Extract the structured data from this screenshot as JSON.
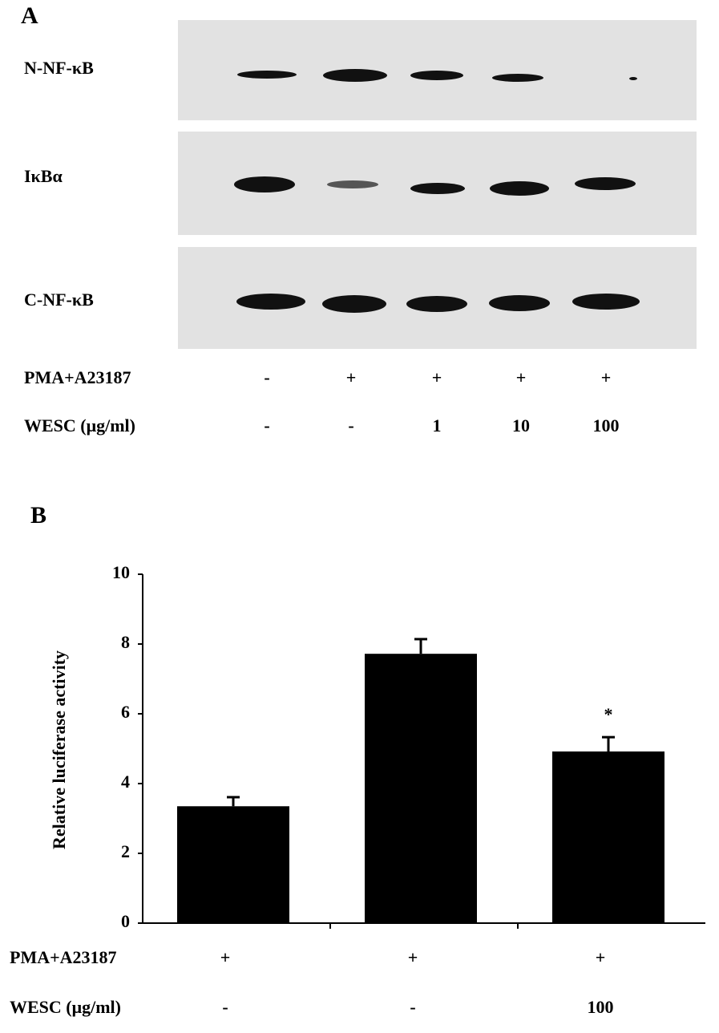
{
  "panel_a": {
    "label": "A",
    "blots": [
      "N-NF-κB",
      "IκBα",
      "C-NF-κB"
    ],
    "conditions": [
      {
        "label": "PMA+A23187",
        "values": [
          "-",
          "+",
          "+",
          "+",
          "+"
        ]
      },
      {
        "label": "WESC (μg/ml)",
        "values": [
          "-",
          "-",
          "1",
          "10",
          "100"
        ]
      }
    ]
  },
  "chart_data": {
    "type": "bar",
    "panel_label": "B",
    "y_label": "Relative luciferase activity",
    "values": [
      3.35,
      7.72,
      4.92
    ],
    "errors": [
      0.26,
      0.42,
      0.41
    ],
    "significance": [
      null,
      null,
      "*"
    ],
    "color": "#000000",
    "ylim": [
      0,
      10
    ],
    "yticks": [
      0,
      2,
      4,
      6,
      8,
      10
    ],
    "conditions": [
      {
        "label": "PMA+A23187",
        "values": [
          "+",
          "+",
          "+"
        ]
      },
      {
        "label": "WESC (μg/ml)",
        "values": [
          "-",
          "-",
          "100"
        ]
      }
    ]
  }
}
